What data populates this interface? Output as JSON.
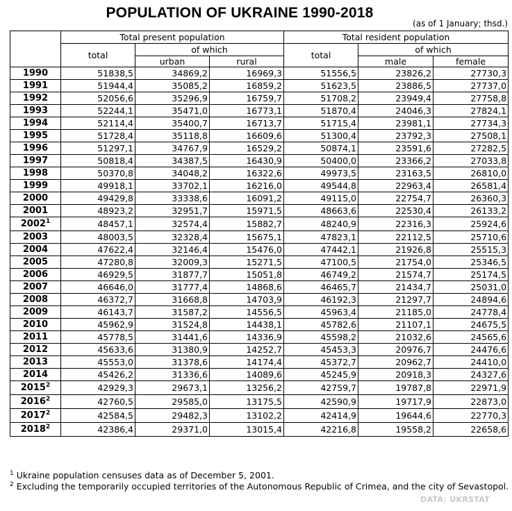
{
  "title": "POPULATION OF UKRAINE 1990-2018",
  "unit_note": "(as of 1 January; thsd.)",
  "headers": {
    "present_group": "Total present population",
    "resident_group": "Total resident population",
    "of_which": "of which",
    "total": "total",
    "urban": "urban",
    "rural": "rural",
    "male": "male",
    "female": "female"
  },
  "rows": [
    {
      "year": "1990",
      "sup": "",
      "present_total": "51838,5",
      "urban": "34869,2",
      "rural": "16969,3",
      "resident_total": "51556,5",
      "male": "23826,2",
      "female": "27730,3"
    },
    {
      "year": "1991",
      "sup": "",
      "present_total": "51944,4",
      "urban": "35085,2",
      "rural": "16859,2",
      "resident_total": "51623,5",
      "male": "23886,5",
      "female": "27737,0"
    },
    {
      "year": "1992",
      "sup": "",
      "present_total": "52056,6",
      "urban": "35296,9",
      "rural": "16759,7",
      "resident_total": "51708,2",
      "male": "23949,4",
      "female": "27758,8"
    },
    {
      "year": "1993",
      "sup": "",
      "present_total": "52244,1",
      "urban": "35471,0",
      "rural": "16773,1",
      "resident_total": "51870,4",
      "male": "24046,3",
      "female": "27824,1"
    },
    {
      "year": "1994",
      "sup": "",
      "present_total": "52114,4",
      "urban": "35400,7",
      "rural": "16713,7",
      "resident_total": "51715,4",
      "male": "23981,1",
      "female": "27734,3"
    },
    {
      "year": "1995",
      "sup": "",
      "present_total": "51728,4",
      "urban": "35118,8",
      "rural": "16609,6",
      "resident_total": "51300,4",
      "male": "23792,3",
      "female": "27508,1"
    },
    {
      "year": "1996",
      "sup": "",
      "present_total": "51297,1",
      "urban": "34767,9",
      "rural": "16529,2",
      "resident_total": "50874,1",
      "male": "23591,6",
      "female": "27282,5"
    },
    {
      "year": "1997",
      "sup": "",
      "present_total": "50818,4",
      "urban": "34387,5",
      "rural": "16430,9",
      "resident_total": "50400,0",
      "male": "23366,2",
      "female": "27033,8"
    },
    {
      "year": "1998",
      "sup": "",
      "present_total": "50370,8",
      "urban": "34048,2",
      "rural": "16322,6",
      "resident_total": "49973,5",
      "male": "23163,5",
      "female": "26810,0"
    },
    {
      "year": "1999",
      "sup": "",
      "present_total": "49918,1",
      "urban": "33702,1",
      "rural": "16216,0",
      "resident_total": "49544,8",
      "male": "22963,4",
      "female": "26581,4"
    },
    {
      "year": "2000",
      "sup": "",
      "present_total": "49429,8",
      "urban": "33338,6",
      "rural": "16091,2",
      "resident_total": "49115,0",
      "male": "22754,7",
      "female": "26360,3"
    },
    {
      "year": "2001",
      "sup": "",
      "present_total": "48923,2",
      "urban": "32951,7",
      "rural": "15971,5",
      "resident_total": "48663,6",
      "male": "22530,4",
      "female": "26133,2"
    },
    {
      "year": "2002",
      "sup": "1",
      "present_total": "48457,1",
      "urban": "32574,4",
      "rural": "15882,7",
      "resident_total": "48240,9",
      "male": "22316,3",
      "female": "25924,6"
    },
    {
      "year": "2003",
      "sup": "",
      "present_total": "48003,5",
      "urban": "32328,4",
      "rural": "15675,1",
      "resident_total": "47823,1",
      "male": "22112,5",
      "female": "25710,6"
    },
    {
      "year": "2004",
      "sup": "",
      "present_total": "47622,4",
      "urban": "32146,4",
      "rural": "15476,0",
      "resident_total": "47442,1",
      "male": "21926,8",
      "female": "25515,3"
    },
    {
      "year": "2005",
      "sup": "",
      "present_total": "47280,8",
      "urban": "32009,3",
      "rural": "15271,5",
      "resident_total": "47100,5",
      "male": "21754,0",
      "female": "25346,5"
    },
    {
      "year": "2006",
      "sup": "",
      "present_total": "46929,5",
      "urban": "31877,7",
      "rural": "15051,8",
      "resident_total": "46749,2",
      "male": "21574,7",
      "female": "25174,5"
    },
    {
      "year": "2007",
      "sup": "",
      "present_total": "46646,0",
      "urban": "31777,4",
      "rural": "14868,6",
      "resident_total": "46465,7",
      "male": "21434,7",
      "female": "25031,0"
    },
    {
      "year": "2008",
      "sup": "",
      "present_total": "46372,7",
      "urban": "31668,8",
      "rural": "14703,9",
      "resident_total": "46192,3",
      "male": "21297,7",
      "female": "24894,6"
    },
    {
      "year": "2009",
      "sup": "",
      "present_total": "46143,7",
      "urban": "31587,2",
      "rural": "14556,5",
      "resident_total": "45963,4",
      "male": "21185,0",
      "female": "24778,4"
    },
    {
      "year": "2010",
      "sup": "",
      "present_total": "45962,9",
      "urban": "31524,8",
      "rural": "14438,1",
      "resident_total": "45782,6",
      "male": "21107,1",
      "female": "24675,5"
    },
    {
      "year": "2011",
      "sup": "",
      "present_total": "45778,5",
      "urban": "31441,6",
      "rural": "14336,9",
      "resident_total": "45598,2",
      "male": "21032,6",
      "female": "24565,6"
    },
    {
      "year": "2012",
      "sup": "",
      "present_total": "45633,6",
      "urban": "31380,9",
      "rural": "14252,7",
      "resident_total": "45453,3",
      "male": "20976,7",
      "female": "24476,6"
    },
    {
      "year": "2013",
      "sup": "",
      "present_total": "45553,0",
      "urban": "31378,6",
      "rural": "14174,4",
      "resident_total": "45372,7",
      "male": "20962,7",
      "female": "24410,0"
    },
    {
      "year": "2014",
      "sup": "",
      "present_total": "45426,2",
      "urban": "31336,6",
      "rural": "14089,6",
      "resident_total": "45245,9",
      "male": "20918,3",
      "female": "24327,6"
    },
    {
      "year": "2015",
      "sup": "2",
      "present_total": "42929,3",
      "urban": "29673,1",
      "rural": "13256,2",
      "resident_total": "42759,7",
      "male": "19787,8",
      "female": "22971,9"
    },
    {
      "year": "2016",
      "sup": "2",
      "present_total": "42760,5",
      "urban": "29585,0",
      "rural": "13175,5",
      "resident_total": "42590,9",
      "male": "19717,9",
      "female": "22873,0"
    },
    {
      "year": "2017",
      "sup": "2",
      "present_total": "42584,5",
      "urban": "29482,3",
      "rural": "13102,2",
      "resident_total": "42414,9",
      "male": "19644,6",
      "female": "22770,3"
    },
    {
      "year": "2018",
      "sup": "2",
      "present_total": "42386,4",
      "urban": "29371,0",
      "rural": "13015,4",
      "resident_total": "42216,8",
      "male": "19558,2",
      "female": "22658,6"
    }
  ],
  "footnotes": [
    {
      "mark": "1",
      "text": "Ukraine population censuses data as of December 5, 2001."
    },
    {
      "mark": "2",
      "text": "Excluding the temporarily occupied territories of the Autonomous Republic of Crimea, and the city of Sevastopol."
    }
  ],
  "source": "DATA: UKRSTAT"
}
